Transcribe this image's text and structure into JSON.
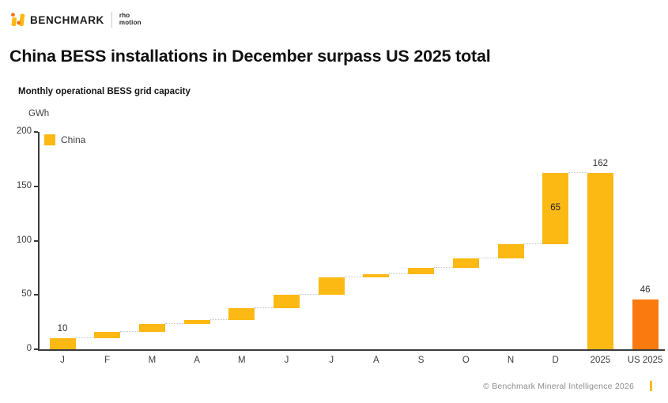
{
  "header": {
    "brand": "BENCHMARK",
    "partner_line1": "rho",
    "partner_line2": "motion"
  },
  "title": "China BESS installations in December surpass US 2025 total",
  "subtitle": "Monthly operational BESS grid capacity",
  "footer": {
    "copyright": "© Benchmark Mineral Intelligence 2026"
  },
  "colors": {
    "china_yellow": "#FCB813",
    "us_orange": "#FB7A10",
    "logo_orange": "#F97316",
    "axis": "#3b3b3b",
    "connector": "#c4c4c4"
  },
  "chart_data": {
    "type": "waterfall",
    "title": "China BESS installations in December surpass US 2025 total",
    "subtitle": "Monthly operational BESS grid capacity",
    "unit_label": "GWh",
    "ylim": [
      0,
      200
    ],
    "yticks": [
      0,
      50,
      100,
      150,
      200
    ],
    "grid": false,
    "legend": [
      {
        "label": "China",
        "color": "#FCB813"
      }
    ],
    "legend_position": "top-left",
    "categories": [
      "J",
      "F",
      "M",
      "A",
      "M",
      "J",
      "J",
      "A",
      "S",
      "O",
      "N",
      "D",
      "2025",
      "US 2025"
    ],
    "bars": [
      {
        "category": "J",
        "start": 0,
        "end": 10,
        "series": "china",
        "color": "#FCB813",
        "annotation": "10",
        "annotation_pos": "above",
        "connect_to_next": true
      },
      {
        "category": "F",
        "start": 10,
        "end": 16,
        "series": "china",
        "color": "#FCB813",
        "connect_to_next": true
      },
      {
        "category": "M",
        "start": 16,
        "end": 23,
        "series": "china",
        "color": "#FCB813",
        "connect_to_next": true
      },
      {
        "category": "A",
        "start": 23,
        "end": 27,
        "series": "china",
        "color": "#FCB813",
        "connect_to_next": true
      },
      {
        "category": "M",
        "start": 27,
        "end": 38,
        "series": "china",
        "color": "#FCB813",
        "connect_to_next": true
      },
      {
        "category": "J",
        "start": 38,
        "end": 50,
        "series": "china",
        "color": "#FCB813",
        "connect_to_next": true
      },
      {
        "category": "J",
        "start": 50,
        "end": 66,
        "series": "china",
        "color": "#FCB813",
        "connect_to_next": true
      },
      {
        "category": "A",
        "start": 66,
        "end": 69,
        "series": "china",
        "color": "#FCB813",
        "connect_to_next": true
      },
      {
        "category": "S",
        "start": 69,
        "end": 75,
        "series": "china",
        "color": "#FCB813",
        "connect_to_next": true
      },
      {
        "category": "O",
        "start": 75,
        "end": 84,
        "series": "china",
        "color": "#FCB813",
        "connect_to_next": true
      },
      {
        "category": "N",
        "start": 84,
        "end": 97,
        "series": "china",
        "color": "#FCB813",
        "connect_to_next": true
      },
      {
        "category": "D",
        "start": 97,
        "end": 162,
        "series": "china",
        "color": "#FCB813",
        "annotation": "65",
        "annotation_pos": "inside",
        "connect_to_next": true
      },
      {
        "category": "2025",
        "start": 0,
        "end": 162,
        "series": "china",
        "color": "#FCB813",
        "annotation": "162",
        "annotation_pos": "above",
        "connect_to_next": false
      },
      {
        "category": "US 2025",
        "start": 0,
        "end": 46,
        "series": "us",
        "color": "#FB7A10",
        "annotation": "46",
        "annotation_pos": "above",
        "connect_to_next": false
      }
    ]
  }
}
